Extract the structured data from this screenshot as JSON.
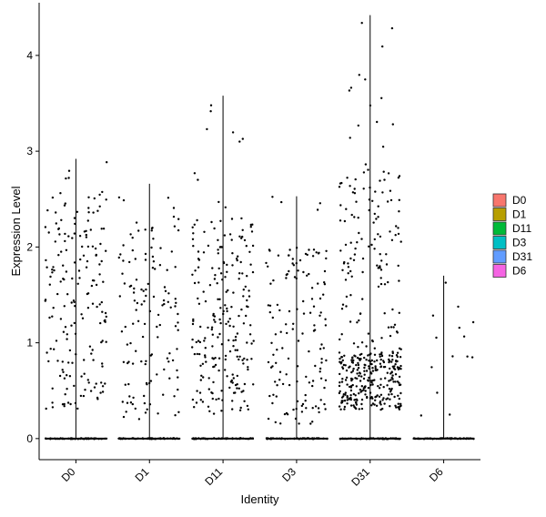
{
  "chart_data": {
    "type": "violin-jitter",
    "xlabel": "Identity",
    "ylabel": "Expression Level",
    "categories": [
      "D0",
      "D1",
      "D11",
      "D3",
      "D31",
      "D6"
    ],
    "y_ticks": [
      0,
      1,
      2,
      3,
      4
    ],
    "ylim": [
      -0.22,
      4.55
    ],
    "fill_colors": [
      "#F8766D",
      "#B79F00",
      "#00BA38",
      "#00BFC4",
      "#619CFF",
      "#F564E3"
    ],
    "series": [
      {
        "name": "D0",
        "max": 2.92,
        "color": "#F8766D",
        "n_points": 180,
        "band_low": 0.3,
        "band_high": 2.6
      },
      {
        "name": "D1",
        "max": 2.66,
        "color": "#B79F00",
        "n_points": 130,
        "band_low": 0.2,
        "band_high": 2.3
      },
      {
        "name": "D11",
        "max": 3.58,
        "color": "#00BA38",
        "n_points": 230,
        "band_low": 0.25,
        "band_high": 2.3
      },
      {
        "name": "D3",
        "max": 2.53,
        "color": "#00BFC4",
        "n_points": 140,
        "band_low": 0.15,
        "band_high": 2.0
      },
      {
        "name": "D31",
        "max": 4.42,
        "color": "#619CFF",
        "n_points": 420,
        "band_low": 0.3,
        "band_high": 2.8
      },
      {
        "name": "D6",
        "max": 1.7,
        "color": "#F564E3",
        "n_points": 14,
        "band_low": 0.2,
        "band_high": 1.7
      }
    ],
    "legend": {
      "position": "right",
      "entries": [
        "D0",
        "D1",
        "D11",
        "D3",
        "D31",
        "D6"
      ]
    },
    "grid": false
  }
}
